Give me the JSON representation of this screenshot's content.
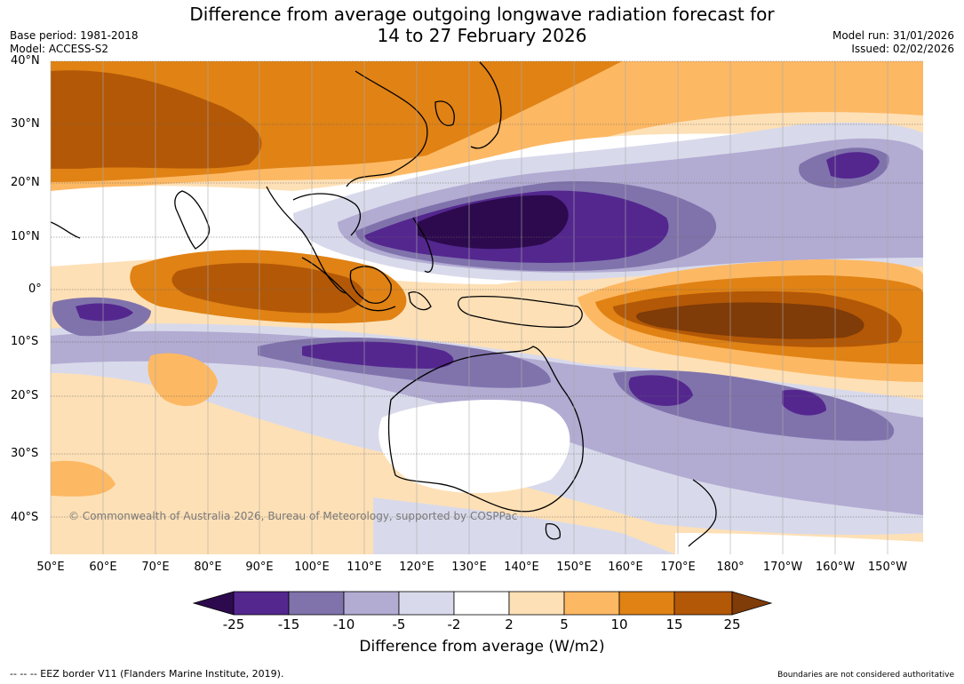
{
  "title": {
    "line1": "Difference from average outgoing longwave radiation forecast for",
    "line2": "14 to 27 February 2026"
  },
  "meta": {
    "base_period": "Base period: 1981-2018",
    "model": "Model: ACCESS-S2",
    "model_run": "Model run: 31/01/2026",
    "issued": "Issued: 02/02/2026"
  },
  "map": {
    "lat_labels": [
      "40°N",
      "30°N",
      "20°N",
      "10°N",
      "0°",
      "10°S",
      "20°S",
      "30°S",
      "40°S"
    ],
    "lon_labels": [
      "50°E",
      "60°E",
      "70°E",
      "80°E",
      "90°E",
      "100°E",
      "110°E",
      "120°E",
      "130°E",
      "140°E",
      "150°E",
      "160°E",
      "170°E",
      "180°",
      "170°W",
      "160°W",
      "150°W"
    ],
    "copyright": "© Commonwealth of Australia 2026, Bureau of Meteorology, supported by COSPPac"
  },
  "colorbar": {
    "ticks": [
      "-25",
      "-15",
      "-10",
      "-5",
      "-2",
      "2",
      "5",
      "10",
      "15",
      "25"
    ],
    "colors": [
      "#2d0a4e",
      "#54278f",
      "#8073ac",
      "#b2abd2",
      "#d8daeb",
      "#ffffff",
      "#fee0b6",
      "#fdb863",
      "#e08214",
      "#b35806",
      "#7f3b08"
    ],
    "label": "Difference from average (W/m2)"
  },
  "footer": {
    "eez_note": "-- -- -- EEZ border V11 (Flanders Marine Institute, 2019).",
    "boundaries_note": "Boundaries are not considered authoritative"
  }
}
